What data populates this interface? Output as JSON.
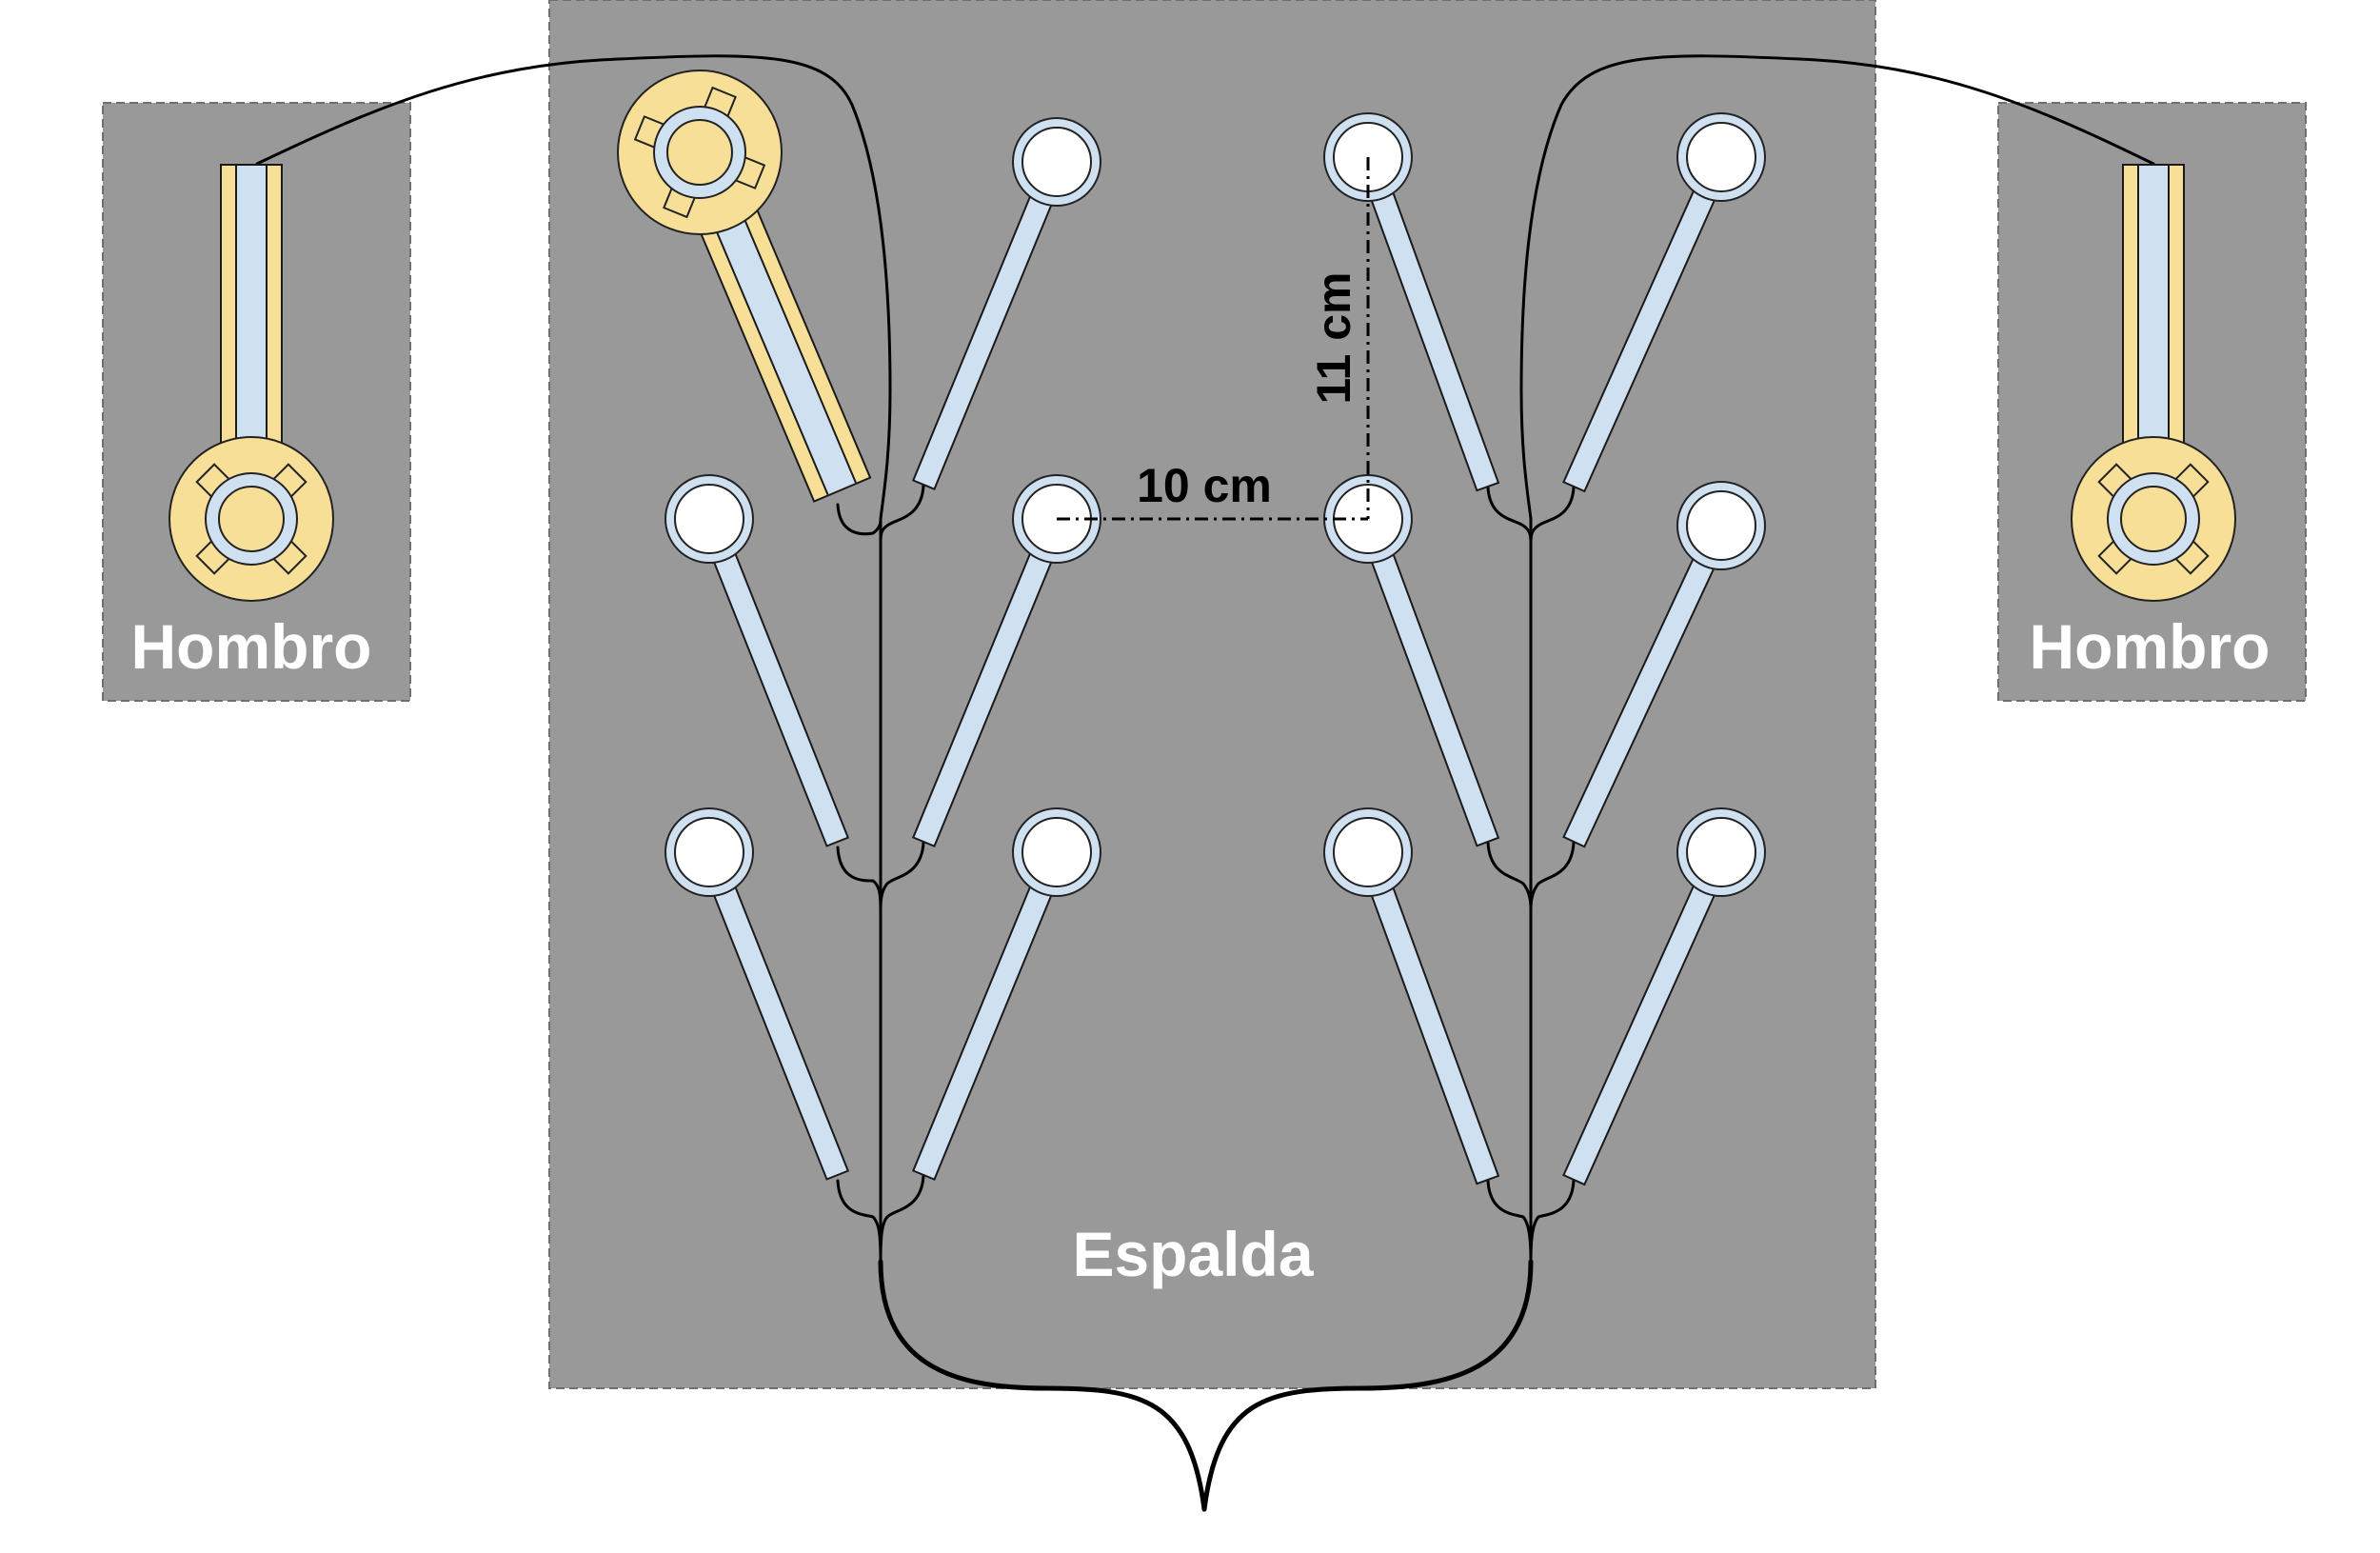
{
  "panels": {
    "left_shoulder": "Hombro",
    "right_shoulder": "Hombro",
    "back": "Espalda"
  },
  "dimensions": {
    "horizontal": "10 cm",
    "vertical": "11 cm"
  },
  "colors": {
    "panel_fill": "#999999",
    "panel_border": "#6f6f6f",
    "electrode_fill": "#ffffff",
    "electrode_ring": "#cfe0f1",
    "strip_fill": "#cfe0f1",
    "reference_fill": "#f7df97",
    "wire": "#000000"
  },
  "icons": {
    "sensor_electrode": "circle-electrode-icon",
    "reference_electrode": "reference-electrode-icon"
  }
}
